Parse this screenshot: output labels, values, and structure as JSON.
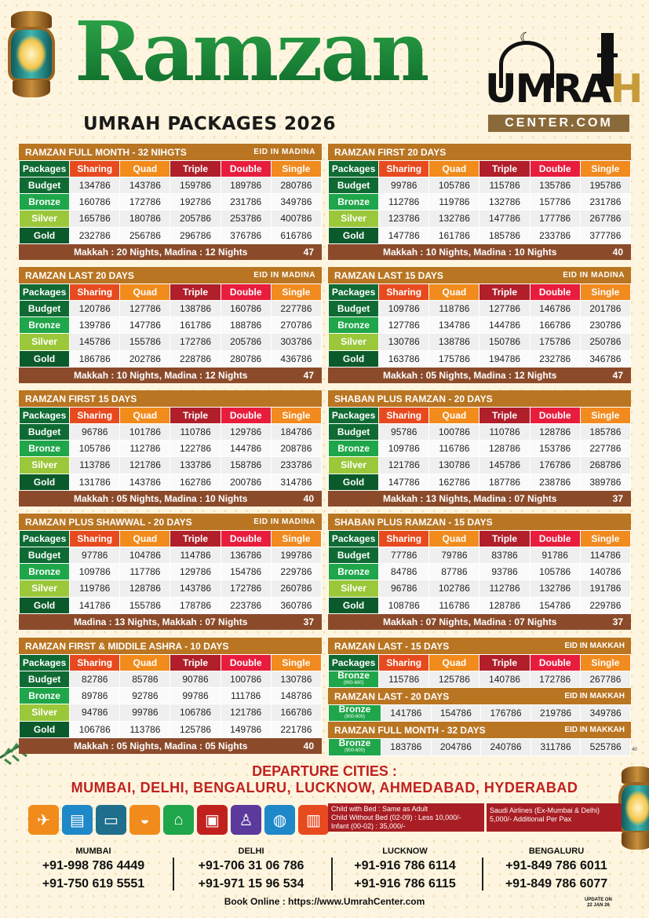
{
  "header": {
    "title": "Ramzan",
    "subtitle": "UMRAH PACKAGES 2026",
    "logo_word_a": "UMRA",
    "logo_word_b": "H",
    "logo_sub": "CENTER.COM"
  },
  "columns": [
    "Packages",
    "Sharing",
    "Quad",
    "Triple",
    "Double",
    "Single"
  ],
  "packages": [
    {
      "title": "RAMZAN FULL MONTH - 32 NIHGTS",
      "eid": "EID IN MADINA",
      "footer": "Makkah : 20 Nights, Madina : 12 Nights",
      "num": "47",
      "rows": [
        [
          "Budget",
          "134786",
          "143786",
          "159786",
          "189786",
          "280786"
        ],
        [
          "Bronze",
          "160786",
          "172786",
          "192786",
          "231786",
          "349786"
        ],
        [
          "Silver",
          "165786",
          "180786",
          "205786",
          "253786",
          "400786"
        ],
        [
          "Gold",
          "232786",
          "256786",
          "296786",
          "376786",
          "616786"
        ]
      ]
    },
    {
      "title": "RAMZAN FIRST 20 DAYS",
      "eid": "",
      "footer": "Makkah : 10 Nights, Madina : 10 Nights",
      "num": "40",
      "rows": [
        [
          "Budget",
          "99786",
          "105786",
          "115786",
          "135786",
          "195786"
        ],
        [
          "Bronze",
          "112786",
          "119786",
          "132786",
          "157786",
          "231786"
        ],
        [
          "Silver",
          "123786",
          "132786",
          "147786",
          "177786",
          "267786"
        ],
        [
          "Gold",
          "147786",
          "161786",
          "185786",
          "233786",
          "377786"
        ]
      ]
    },
    {
      "title": "RAMZAN LAST 20 DAYS",
      "eid": "EID IN MADINA",
      "footer": "Makkah : 10 Nights, Madina : 12 Nights",
      "num": "47",
      "rows": [
        [
          "Budget",
          "120786",
          "127786",
          "138786",
          "160786",
          "227786"
        ],
        [
          "Bronze",
          "139786",
          "147786",
          "161786",
          "188786",
          "270786"
        ],
        [
          "Silver",
          "145786",
          "155786",
          "172786",
          "205786",
          "303786"
        ],
        [
          "Gold",
          "186786",
          "202786",
          "228786",
          "280786",
          "436786"
        ]
      ]
    },
    {
      "title": "RAMZAN LAST 15 DAYS",
      "eid": "EID IN MADINA",
      "footer": "Makkah : 05 Nights, Madina : 12 Nights",
      "num": "47",
      "rows": [
        [
          "Budget",
          "109786",
          "118786",
          "127786",
          "146786",
          "201786"
        ],
        [
          "Bronze",
          "127786",
          "134786",
          "144786",
          "166786",
          "230786"
        ],
        [
          "Silver",
          "130786",
          "138786",
          "150786",
          "175786",
          "250786"
        ],
        [
          "Gold",
          "163786",
          "175786",
          "194786",
          "232786",
          "346786"
        ]
      ]
    },
    {
      "title": "RAMZAN FIRST 15 DAYS",
      "eid": "",
      "footer": "Makkah : 05 Nights, Madina : 10 Nights",
      "num": "40",
      "rows": [
        [
          "Budget",
          "96786",
          "101786",
          "110786",
          "129786",
          "184786"
        ],
        [
          "Bronze",
          "105786",
          "112786",
          "122786",
          "144786",
          "208786"
        ],
        [
          "Silver",
          "113786",
          "121786",
          "133786",
          "158786",
          "233786"
        ],
        [
          "Gold",
          "131786",
          "143786",
          "162786",
          "200786",
          "314786"
        ]
      ]
    },
    {
      "title": "SHABAN PLUS RAMZAN - 20 DAYS",
      "eid": "",
      "footer": "Makkah : 13 Nights, Madina : 07 Nights",
      "num": "37",
      "rows": [
        [
          "Budget",
          "95786",
          "100786",
          "110786",
          "128786",
          "185786"
        ],
        [
          "Bronze",
          "109786",
          "116786",
          "128786",
          "153786",
          "227786"
        ],
        [
          "Silver",
          "121786",
          "130786",
          "145786",
          "176786",
          "268786"
        ],
        [
          "Gold",
          "147786",
          "162786",
          "187786",
          "238786",
          "389786"
        ]
      ]
    },
    {
      "title": "RAMZAN PLUS SHAWWAL - 20 DAYS",
      "eid": "EID IN MADINA",
      "footer": "Madina : 13 Nights, Makkah : 07 Nights",
      "num": "37",
      "rows": [
        [
          "Budget",
          "97786",
          "104786",
          "114786",
          "136786",
          "199786"
        ],
        [
          "Bronze",
          "109786",
          "117786",
          "129786",
          "154786",
          "229786"
        ],
        [
          "Silver",
          "119786",
          "128786",
          "143786",
          "172786",
          "260786"
        ],
        [
          "Gold",
          "141786",
          "155786",
          "178786",
          "223786",
          "360786"
        ]
      ]
    },
    {
      "title": "SHABAN PLUS RAMZAN - 15 DAYS",
      "eid": "",
      "footer": "Makkah : 07 Nights, Madina : 07 Nights",
      "num": "37",
      "rows": [
        [
          "Budget",
          "77786",
          "79786",
          "83786",
          "91786",
          "114786"
        ],
        [
          "Bronze",
          "84786",
          "87786",
          "93786",
          "105786",
          "140786"
        ],
        [
          "Silver",
          "96786",
          "102786",
          "112786",
          "132786",
          "191786"
        ],
        [
          "Gold",
          "108786",
          "116786",
          "128786",
          "154786",
          "229786"
        ]
      ]
    },
    {
      "title": "RAMZAN FIRST & MIDDILE ASHRA - 10 DAYS",
      "eid": "",
      "footer": "Makkah : 05 Nights, Madina : 05 Nights",
      "num": "40",
      "rows": [
        [
          "Budget",
          "82786",
          "85786",
          "90786",
          "100786",
          "130786"
        ],
        [
          "Bronze",
          "89786",
          "92786",
          "99786",
          "111786",
          "148786"
        ],
        [
          "Silver",
          "94786",
          "99786",
          "106786",
          "121786",
          "166786"
        ],
        [
          "Gold",
          "106786",
          "113786",
          "125786",
          "149786",
          "221786"
        ]
      ]
    }
  ],
  "makkah": {
    "sections": [
      {
        "title": "RAMZAN LAST - 15 DAYS",
        "eid": "EID IN MAKKAH",
        "label": "Bronze",
        "sub": "(900-600)",
        "row": [
          "115786",
          "125786",
          "140786",
          "172786",
          "267786"
        ]
      },
      {
        "title": "RAMZAN LAST - 20 DAYS",
        "eid": "EID IN MAKKAH",
        "label": "Bronze",
        "sub": "(900-600)",
        "row": [
          "141786",
          "154786",
          "176786",
          "219786",
          "349786"
        ]
      },
      {
        "title": "RAMZAN FULL MONTH - 32 DAYS",
        "eid": "EID IN MAKKAH",
        "label": "Bronze",
        "sub": "(900-600)",
        "row": [
          "183786",
          "204786",
          "240786",
          "311786",
          "525786"
        ]
      }
    ],
    "corner": "40"
  },
  "departure": {
    "title": "DEPARTURE CITIES :",
    "cities": "MUMBAI, DELHI, BENGALURU, LUCKNOW, AHMEDABAD, HYDERABAD"
  },
  "icons": [
    {
      "name": "flight-icon",
      "glyph": "✈",
      "color": "#f08b1c"
    },
    {
      "name": "passport-visa-icon",
      "glyph": "▤",
      "color": "#1e88c8"
    },
    {
      "name": "hotel-bed-icon",
      "glyph": "▭",
      "color": "#1f6f8c"
    },
    {
      "name": "meal-icon",
      "glyph": "◒",
      "color": "#f08b1c"
    },
    {
      "name": "ziyarat-mosque-icon",
      "glyph": "⌂",
      "color": "#1fa64a"
    },
    {
      "name": "transport-bus-icon",
      "glyph": "▣",
      "color": "#c0211f"
    },
    {
      "name": "guide-icon",
      "glyph": "♙",
      "color": "#5b3a9c"
    },
    {
      "name": "zamzam-water-icon",
      "glyph": "◍",
      "color": "#1e88c8"
    },
    {
      "name": "sim-card-icon",
      "glyph": "▥",
      "color": "#e84a1f"
    }
  ],
  "notes": {
    "child_with_bed": "Child with Bed : Same as Adult",
    "child_without_bed": "Child Without Bed (02-09) : Less 10,000/-",
    "infant": "Infant (00-02) : 35,000/-",
    "airline": "Saudi Airlines (Ex-Mumbai & Delhi)",
    "airline_extra": "5,000/- Additional Per Pax"
  },
  "contacts": [
    {
      "city": "MUMBAI",
      "phones": [
        "+91-998 786 4449",
        "+91-750 619 5551"
      ]
    },
    {
      "city": "DELHI",
      "phones": [
        "+91-706 31 06 786",
        "+91-971 15 96 534"
      ]
    },
    {
      "city": "LUCKNOW",
      "phones": [
        "+91-916 786 6114",
        "+91-916 786 6115"
      ]
    },
    {
      "city": "BENGALURU",
      "phones": [
        "+91-849 786 6011",
        "+91-849 786 6077"
      ]
    }
  ],
  "book_online": "Book Online : https://www.UmrahCenter.com",
  "update": {
    "line1": "UPDATE ON",
    "line2": "22 JAN 26"
  },
  "colors": {
    "header_bar": "#b97522",
    "footer_bar": "#8b4b2b",
    "budget": "#0f6b33",
    "bronze": "#1fa64a",
    "silver": "#9bc83a",
    "gold": "#0b5a2b",
    "departure": "#c0211f"
  }
}
